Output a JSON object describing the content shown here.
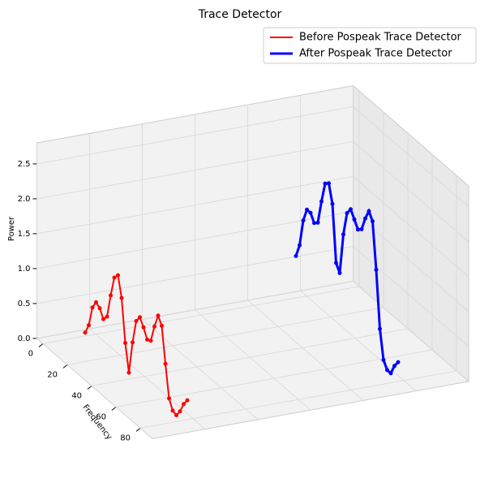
{
  "chart_data": {
    "type": "line3d",
    "title": "Trace Detector",
    "x_label": "Frequency",
    "y_label": "Power",
    "x": [
      0,
      3,
      6,
      9,
      12,
      15,
      18,
      21,
      24,
      27,
      30,
      33,
      36,
      39,
      42,
      45,
      48,
      51,
      54,
      57,
      60,
      63,
      66,
      69,
      72,
      75,
      78,
      81,
      84
    ],
    "series": [
      {
        "name": "Before Pospeak Trace Detector",
        "color": "#ff0000",
        "values": [
          0.05,
          0.2,
          0.5,
          0.62,
          0.58,
          0.47,
          0.55,
          0.9,
          1.2,
          1.28,
          1.0,
          0.4,
          0.02,
          0.5,
          0.85,
          0.95,
          0.85,
          0.72,
          0.75,
          1.0,
          1.2,
          1.1,
          0.6,
          0.15,
          0.02,
          0.0,
          0.1,
          0.25,
          0.35
        ]
      },
      {
        "name": "After Pospeak Trace Detector",
        "color": "#0000ff",
        "values": [
          0.6,
          0.8,
          1.2,
          1.4,
          1.4,
          1.3,
          1.35,
          1.7,
          2.0,
          2.05,
          1.8,
          1.0,
          0.9,
          1.5,
          1.85,
          1.95,
          1.85,
          1.75,
          1.8,
          2.0,
          2.15,
          2.05,
          1.4,
          0.6,
          0.2,
          0.1,
          0.1,
          0.25,
          0.35
        ]
      }
    ],
    "xlim": [
      -5,
      90
    ],
    "xticks": [
      0,
      20,
      40,
      60,
      80
    ],
    "ylim": [
      0,
      2.8
    ],
    "yticks": [
      {
        "value": 0,
        "label": "0.0"
      },
      {
        "value": 0.5,
        "label": "0.5"
      },
      {
        "value": 1,
        "label": "1.0"
      },
      {
        "value": 1.5,
        "label": "1.5"
      },
      {
        "value": 2,
        "label": "2.0"
      },
      {
        "value": 2.5,
        "label": "2.5"
      }
    ],
    "grid": true,
    "legend": "upper right"
  }
}
